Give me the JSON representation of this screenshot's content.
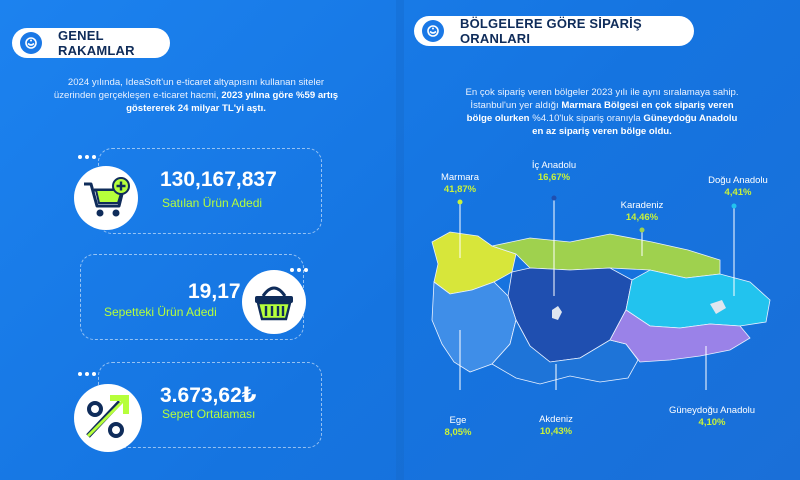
{
  "left": {
    "title": "GENEL RAKAMLAR",
    "intro_line1": "2024 yılında, IdeaSoft'un e-ticaret altyapısını kullanan siteler",
    "intro_line2a": "üzerinden gerçekleşen e-ticaret hacmi, ",
    "intro_line2b": "2023 yılına göre %59 artış",
    "intro_line3": "göstererek 24 milyar TL'yi aştı.",
    "stats": [
      {
        "value": "130,167,837",
        "label": "Satılan Ürün Adedi",
        "icon": "shopping-cart-plus-icon"
      },
      {
        "value": "19,17",
        "label": "Sepetteki Ürün Adedi",
        "icon": "basket-icon"
      },
      {
        "value": "3.673,62₺",
        "label": "Sepet Ortalaması",
        "icon": "percent-arrow-icon"
      }
    ]
  },
  "right": {
    "title": "BÖLGELERE GÖRE SİPARİŞ ORANLARI",
    "intro_line1": "En çok sipariş veren bölgeler 2023 yılı ile aynı sıralamaya sahip.",
    "intro_line2a": "İstanbul'un yer aldığı ",
    "intro_line2b": "Marmara Bölgesi en çok sipariş veren",
    "intro_line3a": "bölge olurken",
    "intro_line3b": " %4.10'luk sipariş oranıyla ",
    "intro_line3c": "Güneydoğu Anadolu",
    "intro_line4": "en az sipariş veren bölge oldu.",
    "regions": [
      {
        "name": "Marmara",
        "percent": "41,87%",
        "color": "#d7e63a"
      },
      {
        "name": "İç Anadolu",
        "percent": "16,67%",
        "color": "#1f4fb0"
      },
      {
        "name": "Karadeniz",
        "percent": "14,46%",
        "color": "#9fd14e"
      },
      {
        "name": "Doğu Anadolu",
        "percent": "4,41%",
        "color": "#22c3ee"
      },
      {
        "name": "Ege",
        "percent": "8,05%",
        "color": "#3f8ee8"
      },
      {
        "name": "Akdeniz",
        "percent": "10,43%",
        "color": "#1e74d8"
      },
      {
        "name": "Güneydoğu Anadolu",
        "percent": "4,10%",
        "color": "#9a82e8"
      }
    ]
  },
  "colors": {
    "accent_green": "#b6ff3b",
    "bg_blue": "#1a78e6",
    "navy": "#0f2c5a"
  }
}
